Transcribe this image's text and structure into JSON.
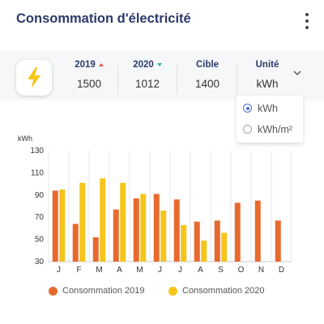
{
  "header": {
    "title": "Consommation d'électricité"
  },
  "icons": {
    "menu": "kebab-menu-icon",
    "bolt": "lightning-bolt-icon",
    "dropdown": "chevron-down-icon"
  },
  "colors": {
    "series_2019": "#e8692e",
    "series_2020": "#f6c51b",
    "title": "#2b3a6b",
    "bolt": "#f6c51b",
    "radio": "#4a6fd3",
    "trend_up": "#e05a3a",
    "trend_down": "#2bb3a0"
  },
  "stats": {
    "year1": {
      "label": "2019",
      "value": "1500",
      "trend": "up"
    },
    "year2": {
      "label": "2020",
      "value": "1012",
      "trend": "down"
    },
    "target": {
      "label": "Cible",
      "value": "1400"
    },
    "unit": {
      "label": "Unité",
      "value": "kWh"
    }
  },
  "unit_options": [
    {
      "label": "kWh",
      "selected": true
    },
    {
      "label": "kWh/m²",
      "selected": false
    }
  ],
  "chart_data": {
    "type": "bar",
    "ylabel": "kWh",
    "ylim": [
      30,
      130
    ],
    "yticks": [
      30,
      50,
      70,
      90,
      110,
      130
    ],
    "categories": [
      "J",
      "F",
      "M",
      "A",
      "M",
      "J",
      "J",
      "A",
      "S",
      "O",
      "N",
      "D"
    ],
    "grid": "vertical",
    "legend": "bottom",
    "series": [
      {
        "name": "Consommation 2019",
        "values": [
          94,
          64,
          52,
          77,
          87,
          91,
          86,
          66,
          67,
          83,
          85,
          67
        ]
      },
      {
        "name": "Consommation 2020",
        "values": [
          95,
          101,
          105,
          101,
          91,
          76,
          63,
          49,
          56,
          null,
          null,
          null
        ]
      }
    ]
  }
}
